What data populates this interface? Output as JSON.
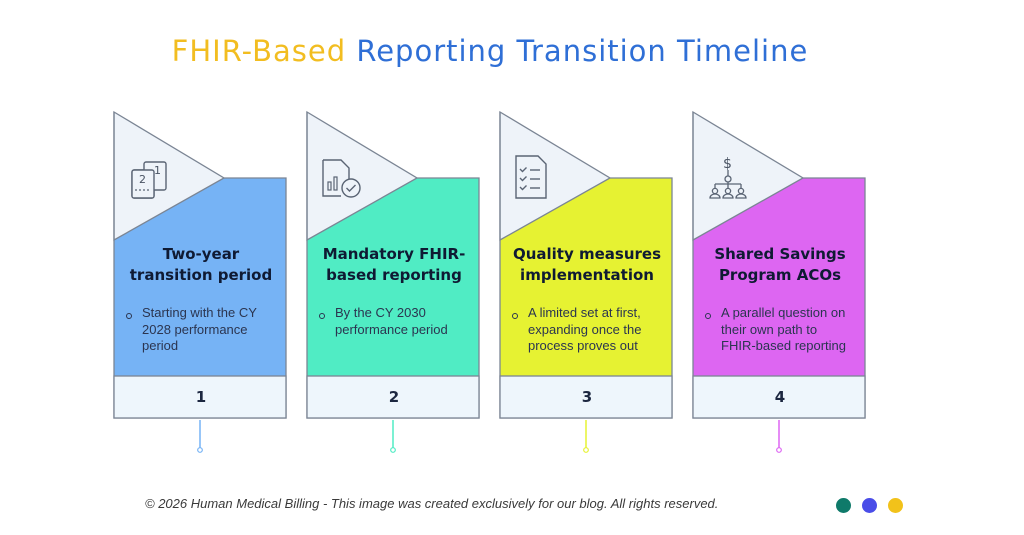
{
  "title": {
    "part1": "FHIR-Based",
    "part2": "Reporting Transition Timeline"
  },
  "colors": {
    "title_accent": "#f2bd20",
    "title_main": "#2f6fd6"
  },
  "steps": [
    {
      "number": "1",
      "heading_line1": "Two-year",
      "heading_line2": "transition period",
      "bullet": [
        "Starting with the CY",
        "2028 performance",
        "period"
      ],
      "color": "#76b3f5",
      "stem_color": "#76b3f5",
      "icon": "documents-icon"
    },
    {
      "number": "2",
      "heading_line1": "Mandatory FHIR-",
      "heading_line2": "based reporting",
      "bullet": [
        "By the CY 2030",
        "performance period"
      ],
      "color": "#50ecc4",
      "stem_color": "#50ecc4",
      "icon": "report-check-icon"
    },
    {
      "number": "3",
      "heading_line1": "Quality measures",
      "heading_line2": "implementation",
      "bullet": [
        "A limited set at first,",
        "expanding once the",
        "process proves out"
      ],
      "color": "#e6f232",
      "stem_color": "#e6f232",
      "icon": "checklist-icon"
    },
    {
      "number": "4",
      "heading_line1": "Shared Savings",
      "heading_line2": "Program ACOs",
      "bullet": [
        "A parallel question on",
        "their own path to",
        "FHIR-based reporting"
      ],
      "color": "#dd66f2",
      "stem_color": "#dd66f2",
      "icon": "organization-dollar-icon"
    }
  ],
  "footer": {
    "text": "© 2026 Human Medical Billing - This image was created exclusively for our blog. All rights reserved."
  },
  "footer_dots": [
    "#0f7a6a",
    "#4a4de8",
    "#f2c21a"
  ]
}
